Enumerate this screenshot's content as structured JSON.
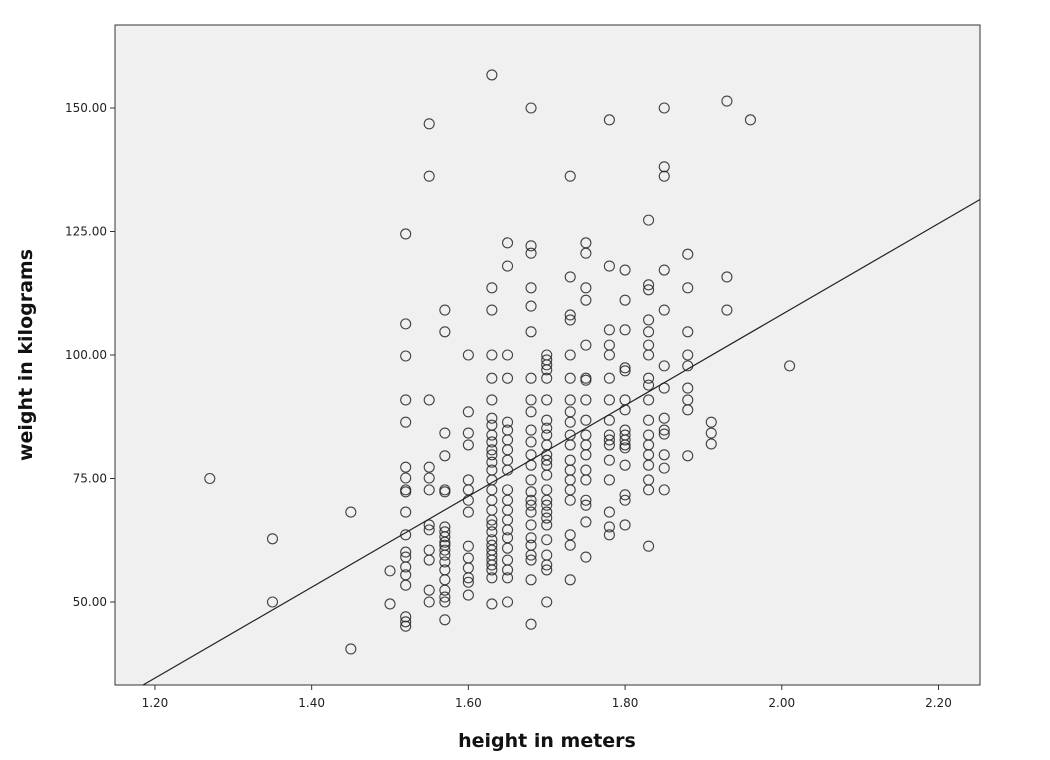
{
  "chart_data": {
    "type": "scatter",
    "title": "",
    "xlabel": "height in meters",
    "ylabel": "weight in kilograms",
    "xlim": [
      1.149,
      2.253
    ],
    "ylim": [
      33.2,
      166.8
    ],
    "xticks": [
      "1.20",
      "1.40",
      "1.60",
      "1.80",
      "2.00",
      "2.20"
    ],
    "yticks": [
      "50.00",
      "75.00",
      "100.00",
      "125.00",
      "150.00"
    ],
    "grid": false,
    "background": "#f0f0f0",
    "marker": "open-circle",
    "fit_line": {
      "intercept": -75.8,
      "slope": 92.0
    },
    "columns": [
      {
        "x": 1.27,
        "y": [
          75.0
        ]
      },
      {
        "x": 1.35,
        "y": [
          62.8,
          50.0
        ]
      },
      {
        "x": 1.45,
        "y": [
          68.2,
          40.5
        ]
      },
      {
        "x": 1.5,
        "y": [
          56.3,
          49.6
        ]
      },
      {
        "x": 1.52,
        "y": [
          124.5,
          106.3,
          99.8,
          90.9,
          86.4,
          77.3,
          75.1,
          72.7,
          72.3,
          68.2,
          63.6,
          60.1,
          59.1,
          57.1,
          55.5,
          53.4,
          47.0,
          46.0,
          45.1
        ]
      },
      {
        "x": 1.55,
        "y": [
          146.8,
          136.2,
          90.9,
          77.3,
          75.1,
          72.7,
          65.6,
          64.6,
          60.5,
          58.5,
          52.4,
          50.0
        ]
      },
      {
        "x": 1.57,
        "y": [
          109.1,
          104.7,
          84.2,
          79.6,
          72.7,
          72.3,
          65.2,
          64.2,
          63.2,
          62.1,
          61.5,
          60.5,
          59.5,
          58.1,
          56.5,
          54.5,
          52.4,
          51.0,
          50.0,
          46.4
        ]
      },
      {
        "x": 1.6,
        "y": [
          100.0,
          88.5,
          84.2,
          81.8,
          74.7,
          72.7,
          70.6,
          68.2,
          61.3,
          58.9,
          56.9,
          54.9,
          54.0,
          51.4
        ]
      },
      {
        "x": 1.63,
        "y": [
          156.7,
          113.6,
          109.1,
          100.0,
          95.3,
          90.9,
          87.2,
          85.8,
          83.8,
          82.4,
          80.8,
          79.8,
          78.3,
          76.7,
          74.7,
          72.7,
          70.6,
          68.6,
          66.6,
          65.6,
          64.2,
          62.6,
          61.5,
          60.5,
          59.5,
          58.5,
          57.5,
          56.5,
          54.9,
          49.6
        ]
      },
      {
        "x": 1.65,
        "y": [
          122.7,
          118.0,
          100.0,
          95.3,
          86.4,
          84.8,
          82.8,
          80.8,
          78.7,
          76.7,
          72.7,
          70.6,
          68.6,
          66.6,
          64.6,
          63.0,
          60.9,
          58.5,
          56.5,
          54.9,
          50.0
        ]
      },
      {
        "x": 1.68,
        "y": [
          150.0,
          122.1,
          120.6,
          113.6,
          109.9,
          104.7,
          95.3,
          90.9,
          88.5,
          84.8,
          82.4,
          79.8,
          77.7,
          74.7,
          72.3,
          70.6,
          69.6,
          68.2,
          65.6,
          63.0,
          61.5,
          59.5,
          58.5,
          54.5,
          45.5
        ]
      },
      {
        "x": 1.7,
        "y": [
          100.0,
          99.0,
          98.0,
          97.0,
          95.3,
          90.9,
          86.8,
          85.2,
          83.8,
          81.8,
          79.8,
          78.7,
          77.7,
          75.7,
          72.7,
          70.6,
          69.6,
          68.2,
          67.0,
          65.6,
          62.6,
          59.5,
          57.5,
          56.5,
          50.0
        ]
      },
      {
        "x": 1.73,
        "y": [
          136.2,
          115.8,
          108.1,
          107.1,
          100.0,
          95.3,
          90.9,
          88.5,
          86.4,
          83.8,
          81.8,
          78.7,
          76.7,
          74.7,
          72.7,
          70.6,
          63.6,
          61.5,
          54.5
        ]
      },
      {
        "x": 1.75,
        "y": [
          122.7,
          120.6,
          113.6,
          111.1,
          102.0,
          95.3,
          94.9,
          90.9,
          86.8,
          83.8,
          81.8,
          79.8,
          76.7,
          74.7,
          70.6,
          69.6,
          66.2,
          59.1
        ]
      },
      {
        "x": 1.78,
        "y": [
          147.6,
          118.0,
          105.1,
          102.0,
          100.0,
          95.3,
          90.9,
          86.8,
          83.8,
          82.8,
          81.8,
          78.7,
          74.7,
          68.2,
          65.2,
          63.6
        ]
      },
      {
        "x": 1.8,
        "y": [
          117.2,
          111.1,
          105.1,
          97.4,
          96.8,
          90.9,
          88.9,
          84.8,
          83.8,
          82.8,
          81.8,
          81.2,
          77.7,
          71.7,
          70.6,
          65.6
        ]
      },
      {
        "x": 1.83,
        "y": [
          127.3,
          114.2,
          113.2,
          107.1,
          104.7,
          102.0,
          100.0,
          95.3,
          93.9,
          90.9,
          86.8,
          83.8,
          81.8,
          79.8,
          77.7,
          74.7,
          72.7,
          61.3
        ]
      },
      {
        "x": 1.85,
        "y": [
          150.0,
          138.1,
          136.2,
          117.2,
          109.1,
          97.8,
          93.3,
          87.2,
          84.8,
          84.0,
          79.8,
          77.1,
          72.7
        ]
      },
      {
        "x": 1.88,
        "y": [
          120.4,
          113.6,
          104.7,
          100.0,
          97.8,
          93.3,
          90.9,
          88.9,
          79.6
        ]
      },
      {
        "x": 1.91,
        "y": [
          86.4,
          84.2,
          82.0
        ]
      },
      {
        "x": 1.93,
        "y": [
          151.4,
          115.8,
          109.1
        ]
      },
      {
        "x": 1.96,
        "y": [
          147.6
        ]
      },
      {
        "x": 2.01,
        "y": [
          97.8
        ]
      }
    ]
  }
}
